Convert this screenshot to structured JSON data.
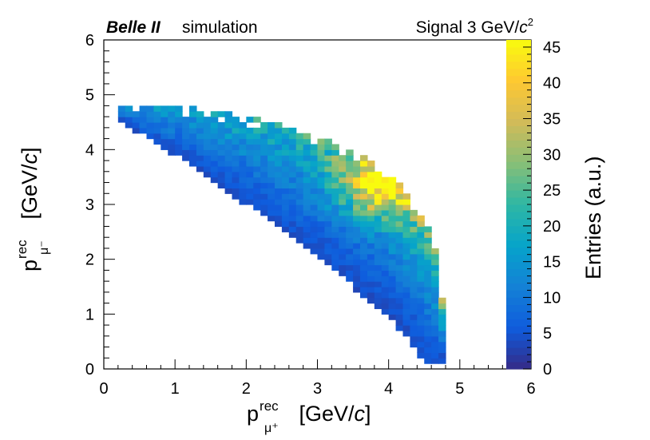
{
  "header": {
    "experiment": "Belle II",
    "mode": "simulation",
    "signal_prefix": "Signal 3 GeV/",
    "signal_unit_letter": "c",
    "signal_unit_power": "2"
  },
  "chart_data": {
    "type": "heatmap",
    "title": "",
    "xlabel": {
      "main": "p",
      "sup": "rec",
      "sub": "μ⁺",
      "unit_prefix": " [GeV/",
      "unit_letter": "c",
      "unit_suffix": "]"
    },
    "ylabel": {
      "main": "p",
      "sup": "rec",
      "sub": "μ⁻",
      "unit_prefix": " [GeV/",
      "unit_letter": "c",
      "unit_suffix": "]"
    },
    "zlabel": "Entries (a.u.)",
    "xlim": [
      0,
      6
    ],
    "ylim": [
      0,
      6
    ],
    "zlim": [
      0,
      46
    ],
    "x_ticks": [
      "0",
      "1",
      "2",
      "3",
      "4",
      "5",
      "6"
    ],
    "y_ticks": [
      "0",
      "1",
      "2",
      "3",
      "4",
      "5",
      "6"
    ],
    "z_ticks": [
      "0",
      "5",
      "10",
      "15",
      "20",
      "25",
      "30",
      "35",
      "40",
      "45"
    ],
    "bin_width": 0.1,
    "colormap": [
      "#352a87",
      "#0f5cdd",
      "#1481d6",
      "#06a4ca",
      "#2eb7a4",
      "#87bf77",
      "#d1bb59",
      "#fec832",
      "#f9fb0e"
    ],
    "band": {
      "description": "bins populated between inner and outer kinematic boundaries",
      "outer_boundary": [
        [
          0.1,
          4.8
        ],
        [
          1.0,
          4.8
        ],
        [
          1.5,
          4.7
        ],
        [
          2.0,
          4.6
        ],
        [
          2.5,
          4.45
        ],
        [
          3.0,
          4.25
        ],
        [
          3.4,
          4.05
        ],
        [
          3.7,
          3.85
        ],
        [
          4.0,
          3.55
        ],
        [
          4.2,
          3.3
        ],
        [
          4.4,
          2.95
        ],
        [
          4.55,
          2.6
        ],
        [
          4.65,
          2.2
        ],
        [
          4.72,
          1.7
        ],
        [
          4.76,
          1.1
        ],
        [
          4.8,
          0.5
        ],
        [
          4.8,
          0.1
        ]
      ],
      "inner_boundary": [
        [
          0.1,
          4.7
        ],
        [
          0.5,
          4.3
        ],
        [
          1.0,
          3.9
        ],
        [
          1.5,
          3.45
        ],
        [
          2.0,
          3.0
        ],
        [
          2.5,
          2.55
        ],
        [
          3.0,
          2.05
        ],
        [
          3.5,
          1.5
        ],
        [
          4.0,
          0.95
        ],
        [
          4.3,
          0.5
        ],
        [
          4.5,
          0.1
        ]
      ],
      "peak": {
        "x": 3.9,
        "y": 3.4,
        "entries": 45
      }
    }
  }
}
